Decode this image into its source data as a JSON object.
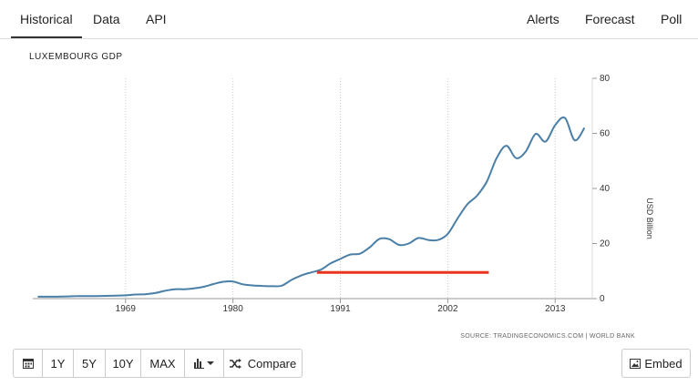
{
  "tabs": {
    "left": [
      "Historical",
      "Data",
      "API"
    ],
    "right": [
      "Alerts",
      "Forecast",
      "Poll"
    ]
  },
  "toolbar": {
    "calendar_icon": "calendar-icon",
    "ranges": [
      "1Y",
      "5Y",
      "10Y",
      "MAX"
    ],
    "chart_type_icon": "bar-chart-icon",
    "compare_label": "Compare",
    "compare_icon": "shuffle-icon",
    "embed_label": "Embed",
    "embed_icon": "image-icon"
  },
  "chart_data": {
    "type": "line",
    "title": "LUXEMBOURG GDP",
    "ylabel": "USD Billion",
    "source": "SOURCE: TRADINGECONOMICS.COM | WORLD BANK",
    "xlim": [
      1959.5,
      2016.8
    ],
    "ylim": [
      0,
      80
    ],
    "x_ticks": [
      1969,
      1980,
      1991,
      2002,
      2013
    ],
    "y_ticks": [
      0,
      20,
      40,
      60,
      80
    ],
    "y_axis_position": "right",
    "grid": "vertical-dotted",
    "line_color": "#4a7fa8",
    "series": [
      {
        "x": [
          1960,
          1961,
          1962,
          1963,
          1964,
          1965,
          1966,
          1967,
          1968,
          1969,
          1970,
          1971,
          1972,
          1973,
          1974,
          1975,
          1976,
          1977,
          1978,
          1979,
          1980,
          1981,
          1982,
          1983,
          1984,
          1985,
          1986,
          1987,
          1988,
          1989,
          1990,
          1991,
          1992,
          1993,
          1994,
          1995,
          1996,
          1997,
          1998,
          1999,
          2000,
          2001,
          2002,
          2003,
          2004,
          2005,
          2006,
          2007,
          2008,
          2009,
          2010,
          2011,
          2012,
          2013,
          2014,
          2015,
          2016
        ],
        "values": [
          0.7,
          0.7,
          0.7,
          0.8,
          0.9,
          0.9,
          0.9,
          1.0,
          1.1,
          1.2,
          1.5,
          1.6,
          2.0,
          2.8,
          3.4,
          3.4,
          3.7,
          4.3,
          5.3,
          6.1,
          6.2,
          5.2,
          4.8,
          4.6,
          4.5,
          4.7,
          6.8,
          8.4,
          9.5,
          10.5,
          12.8,
          14.4,
          16.0,
          16.3,
          18.6,
          21.7,
          21.6,
          19.5,
          20.0,
          22.0,
          21.3,
          21.3,
          23.5,
          29.1,
          34.2,
          37.4,
          42.5,
          51.0,
          55.5,
          51.0,
          53.5,
          59.8,
          57.0,
          63.0,
          65.6,
          57.5,
          62.0
        ]
      }
    ],
    "annotation": {
      "type": "horizontal-line",
      "color": "#e8341c",
      "y": 9.5,
      "x_start": 1988.6,
      "x_end": 2006.2
    }
  }
}
